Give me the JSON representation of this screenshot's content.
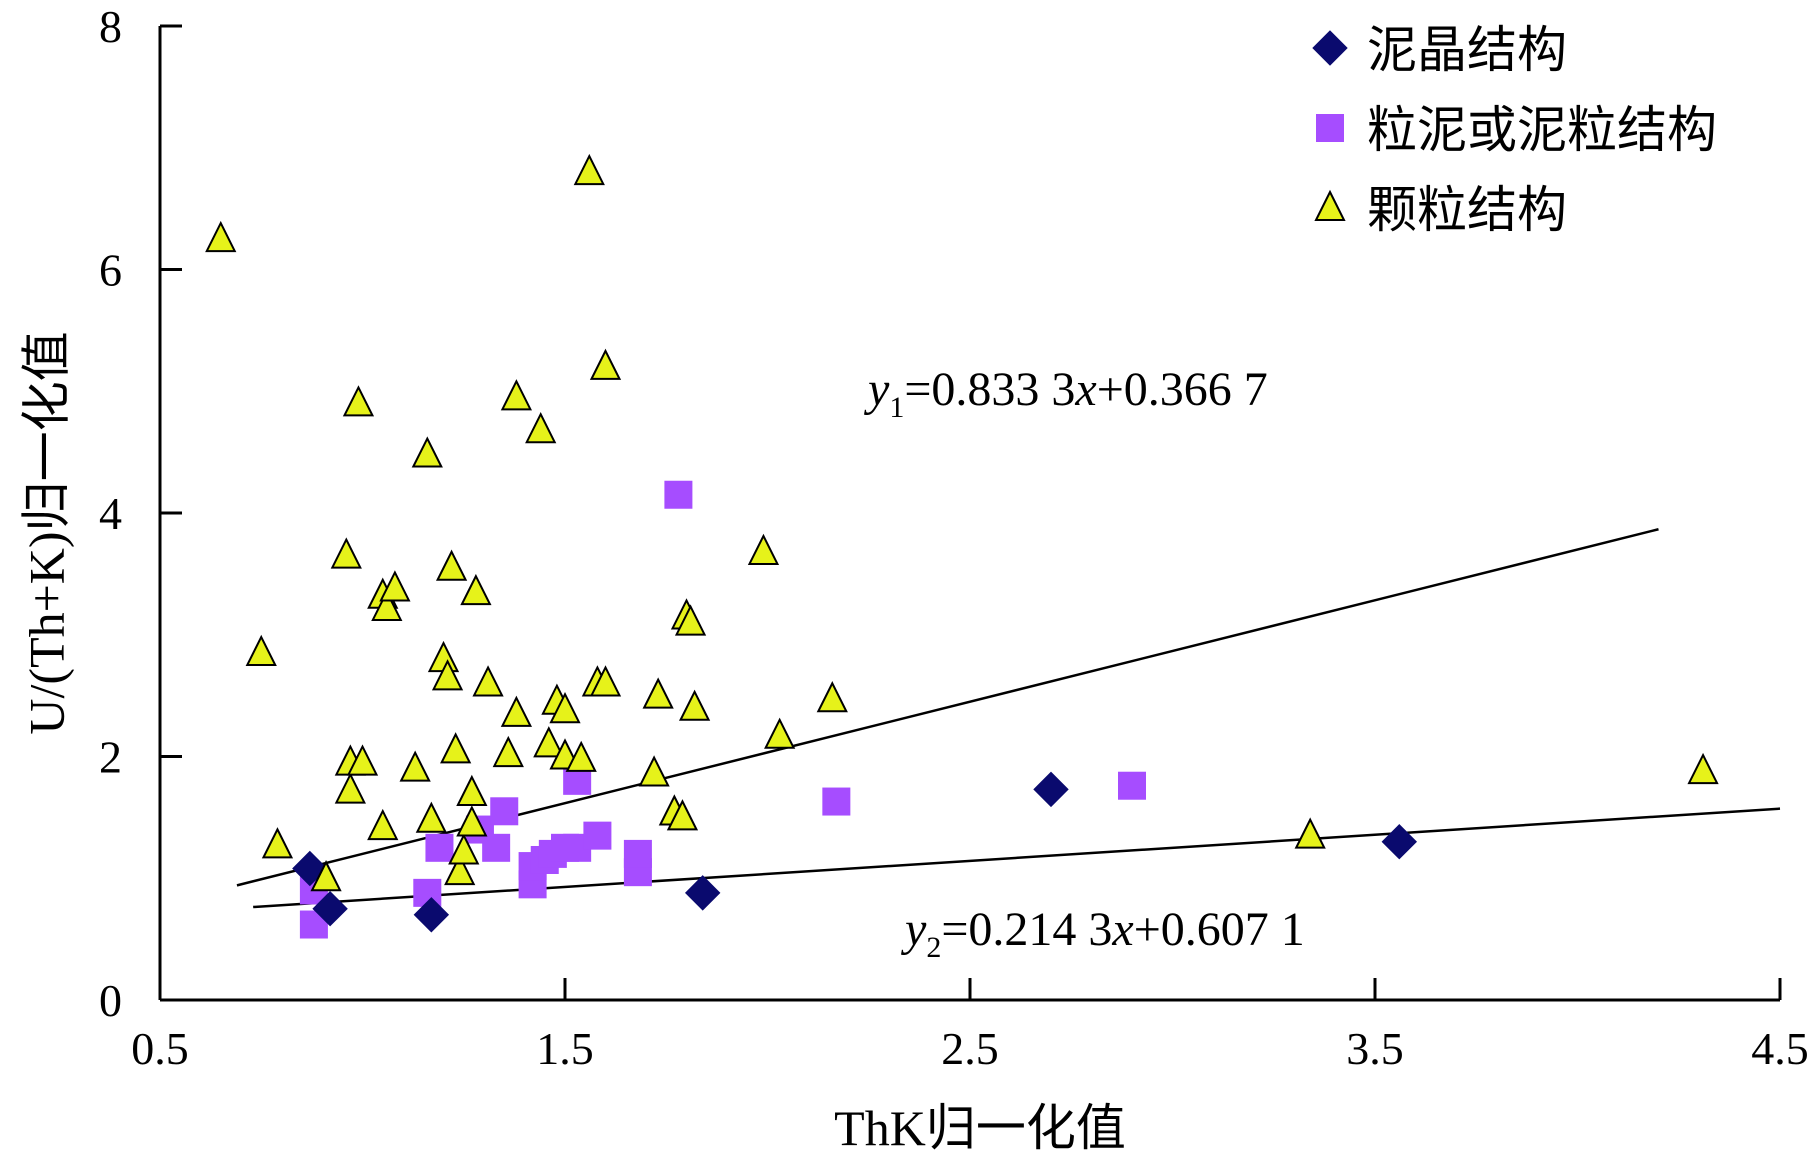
{
  "chart_data": {
    "type": "scatter",
    "xlabel": "ThK归一化值",
    "ylabel": "U/(Th+K)归一化值",
    "xlim": [
      0.5,
      4.5
    ],
    "ylim": [
      0,
      8
    ],
    "x_ticks": [
      "0.5",
      "1.5",
      "2.5",
      "3.5",
      "4.5"
    ],
    "y_ticks": [
      "0",
      "2",
      "4",
      "6",
      "8"
    ],
    "grid": false,
    "legend_position": "top-right",
    "series": [
      {
        "name": "泥晶结构",
        "marker": "diamond",
        "color": "#0a0a6e",
        "points": [
          [
            0.87,
            1.08
          ],
          [
            0.92,
            0.75
          ],
          [
            1.17,
            0.7
          ],
          [
            1.84,
            0.88
          ],
          [
            2.7,
            1.73
          ],
          [
            3.56,
            1.3
          ]
        ]
      },
      {
        "name": "粒泥或泥粒结构",
        "marker": "square",
        "color": "#a64dff",
        "points": [
          [
            0.88,
            0.62
          ],
          [
            0.88,
            0.9
          ],
          [
            1.16,
            0.88
          ],
          [
            1.19,
            1.25
          ],
          [
            1.29,
            1.4
          ],
          [
            1.33,
            1.25
          ],
          [
            1.35,
            1.55
          ],
          [
            1.42,
            0.95
          ],
          [
            1.42,
            1.1
          ],
          [
            1.45,
            1.15
          ],
          [
            1.47,
            1.2
          ],
          [
            1.5,
            1.25
          ],
          [
            1.53,
            1.8
          ],
          [
            1.53,
            1.25
          ],
          [
            1.58,
            1.35
          ],
          [
            1.68,
            1.05
          ],
          [
            1.68,
            1.2
          ],
          [
            1.78,
            4.15
          ],
          [
            2.17,
            1.63
          ],
          [
            2.9,
            1.76
          ]
        ]
      },
      {
        "name": "颗粒结构",
        "marker": "triangle",
        "color": "#e6f21a",
        "points": [
          [
            0.65,
            6.25
          ],
          [
            0.75,
            2.85
          ],
          [
            0.79,
            1.27
          ],
          [
            0.91,
            1.0
          ],
          [
            0.96,
            3.65
          ],
          [
            0.97,
            1.72
          ],
          [
            0.97,
            1.95
          ],
          [
            0.99,
            4.9
          ],
          [
            1.0,
            1.95
          ],
          [
            1.05,
            1.42
          ],
          [
            1.05,
            3.32
          ],
          [
            1.06,
            3.22
          ],
          [
            1.08,
            3.38
          ],
          [
            1.13,
            1.9
          ],
          [
            1.16,
            4.48
          ],
          [
            1.17,
            1.48
          ],
          [
            1.2,
            2.8
          ],
          [
            1.21,
            2.65
          ],
          [
            1.22,
            3.55
          ],
          [
            1.23,
            2.05
          ],
          [
            1.24,
            1.05
          ],
          [
            1.25,
            1.22
          ],
          [
            1.27,
            1.45
          ],
          [
            1.27,
            1.7
          ],
          [
            1.28,
            3.35
          ],
          [
            1.31,
            2.6
          ],
          [
            1.36,
            2.02
          ],
          [
            1.38,
            2.35
          ],
          [
            1.38,
            4.95
          ],
          [
            1.44,
            4.68
          ],
          [
            1.46,
            2.1
          ],
          [
            1.48,
            2.45
          ],
          [
            1.5,
            2.38
          ],
          [
            1.5,
            2.0
          ],
          [
            1.54,
            1.98
          ],
          [
            1.56,
            6.8
          ],
          [
            1.58,
            2.6
          ],
          [
            1.6,
            2.6
          ],
          [
            1.6,
            5.2
          ],
          [
            1.72,
            1.86
          ],
          [
            1.73,
            2.5
          ],
          [
            1.77,
            1.54
          ],
          [
            1.79,
            1.5
          ],
          [
            1.8,
            3.15
          ],
          [
            1.81,
            3.1
          ],
          [
            1.82,
            2.4
          ],
          [
            1.99,
            3.68
          ],
          [
            2.03,
            2.17
          ],
          [
            2.16,
            2.47
          ],
          [
            3.34,
            1.35
          ],
          [
            4.31,
            1.88
          ]
        ]
      }
    ],
    "trend_lines": [
      {
        "label_var": "y",
        "label_sub": "1",
        "label_rest": "=0.833 3x+0.366 7",
        "slope": 0.8333,
        "intercept": 0.3667,
        "x_range": [
          0.69,
          4.2
        ]
      },
      {
        "label_var": "y",
        "label_sub": "2",
        "label_rest": "=0.214 3x+0.607 1",
        "slope": 0.2143,
        "intercept": 0.6071,
        "x_range": [
          0.73,
          4.5
        ]
      }
    ]
  }
}
